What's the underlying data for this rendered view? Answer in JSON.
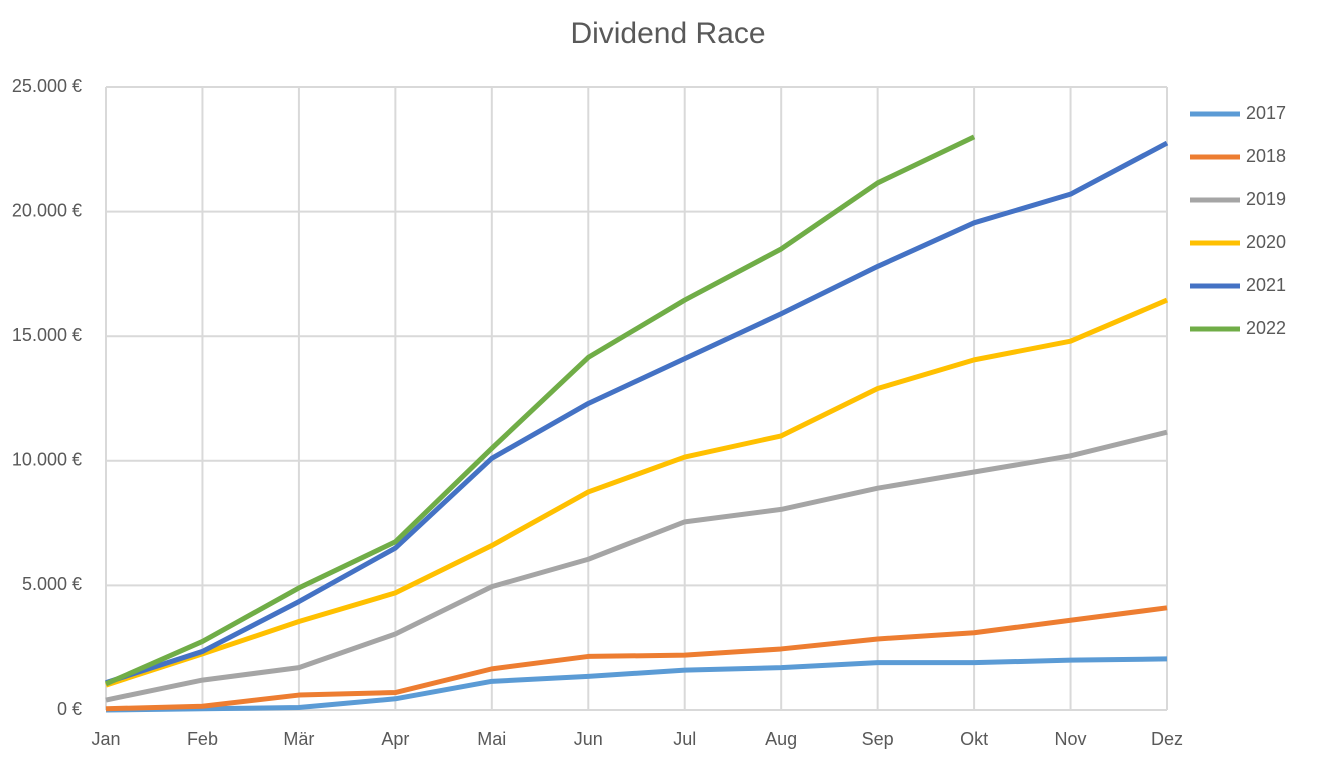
{
  "chart_data": {
    "type": "line",
    "title": "Dividend Race",
    "categories": [
      "Jan",
      "Feb",
      "Mär",
      "Apr",
      "Mai",
      "Jun",
      "Jul",
      "Aug",
      "Sep",
      "Okt",
      "Nov",
      "Dez"
    ],
    "series": [
      {
        "name": "2017",
        "color": "#5b9bd5",
        "values": [
          0,
          50,
          100,
          450,
          1150,
          1350,
          1600,
          1700,
          1900,
          1900,
          2000,
          2050
        ]
      },
      {
        "name": "2018",
        "color": "#ed7d31",
        "values": [
          50,
          150,
          600,
          700,
          1650,
          2150,
          2200,
          2450,
          2850,
          3100,
          3600,
          4100
        ]
      },
      {
        "name": "2019",
        "color": "#a5a5a5",
        "values": [
          400,
          1200,
          1700,
          3050,
          4950,
          6050,
          7550,
          8050,
          8900,
          9550,
          10200,
          11150
        ]
      },
      {
        "name": "2020",
        "color": "#ffc000",
        "values": [
          1000,
          2250,
          3550,
          4700,
          6600,
          8750,
          10150,
          11000,
          12900,
          14050,
          14800,
          16450
        ]
      },
      {
        "name": "2021",
        "color": "#4472c4",
        "values": [
          1100,
          2350,
          4350,
          6500,
          10100,
          12300,
          14100,
          15900,
          17800,
          19550,
          20700,
          22750
        ]
      },
      {
        "name": "2022",
        "color": "#70ad47",
        "values": [
          1050,
          2750,
          4900,
          6750,
          10500,
          14150,
          16450,
          18500,
          21150,
          23000,
          null,
          null
        ]
      }
    ],
    "ylim": [
      0,
      25000
    ],
    "yticks": [
      {
        "value": 0,
        "label": "0 €"
      },
      {
        "value": 5000,
        "label": "5.000 €"
      },
      {
        "value": 10000,
        "label": "10.000 €"
      },
      {
        "value": 15000,
        "label": "15.000 €"
      },
      {
        "value": 20000,
        "label": "20.000 €"
      },
      {
        "value": 25000,
        "label": "25.000 €"
      }
    ],
    "grid": true,
    "legend": "right"
  }
}
